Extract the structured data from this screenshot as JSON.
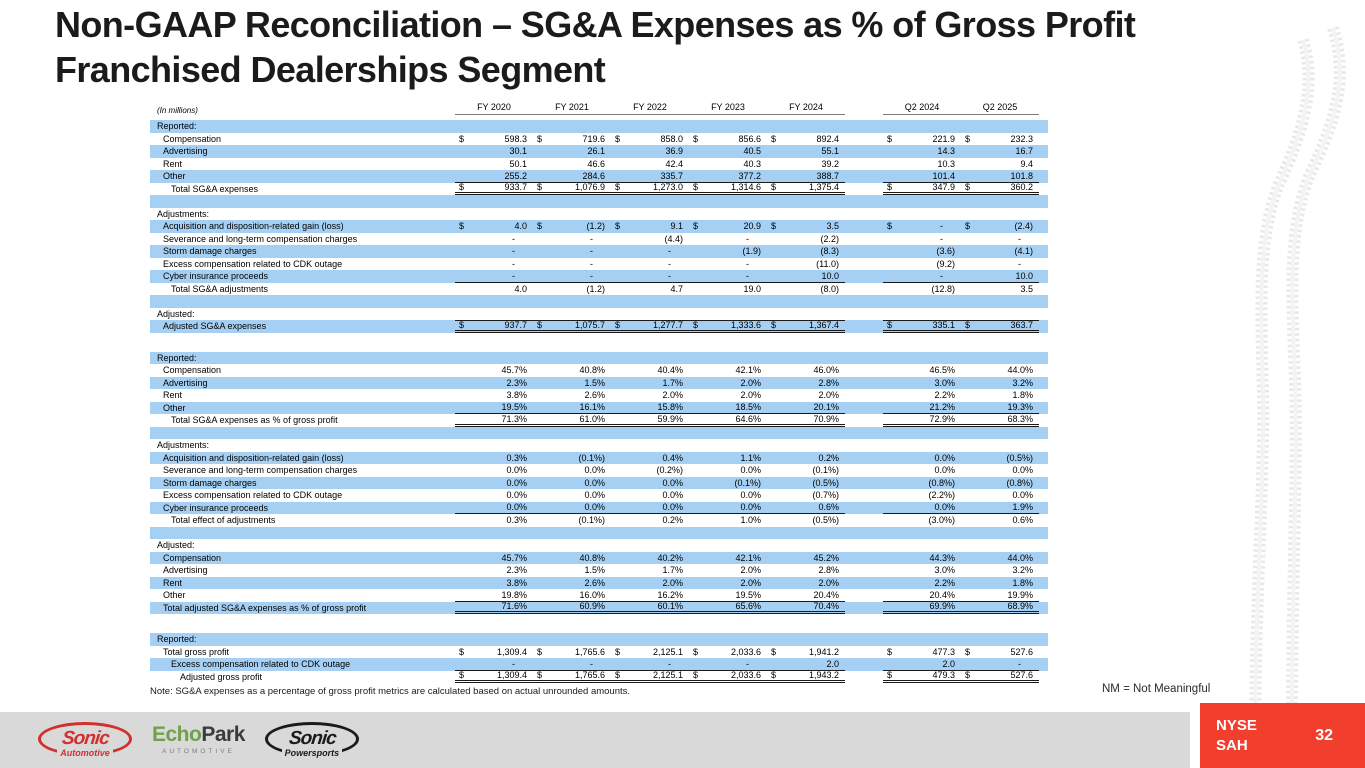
{
  "slide": {
    "title_line1": "Non-GAAP Reconciliation – SG&A Expenses as % of Gross Profit",
    "title_line2": "Franchised Dealerships Segment",
    "note": "Note: SG&A expenses as a percentage of gross profit metrics are calculated based on actual unrounded amounts.",
    "nm_note": "NM = Not Meaningful",
    "page_number": "32"
  },
  "colors": {
    "stripe_blue": "#A5D0F3",
    "accent_red": "#F23E2C",
    "footer_gray": "#D9D9D9",
    "sonic_red": "#D0312D",
    "echopark_green": "#6FA14B"
  },
  "table": {
    "units_label": "(In millions)",
    "columns": [
      "FY 2020",
      "FY 2021",
      "FY 2022",
      "FY 2023",
      "FY 2024",
      "Q2 2024",
      "Q2 2025"
    ],
    "rows": [
      {
        "t": "h",
        "l": "Reported:",
        "bg": "b"
      },
      {
        "t": "r",
        "l": "Compensation",
        "ind": 1,
        "bg": "w",
        "d": true,
        "v": [
          "598.3",
          "719.6",
          "858.0",
          "856.6",
          "892.4",
          "221.9",
          "232.3"
        ]
      },
      {
        "t": "r",
        "l": "Advertising",
        "ind": 1,
        "bg": "b",
        "v": [
          "30.1",
          "26.1",
          "36.9",
          "40.5",
          "55.1",
          "14.3",
          "16.7"
        ]
      },
      {
        "t": "r",
        "l": "Rent",
        "ind": 1,
        "bg": "w",
        "v": [
          "50.1",
          "46.6",
          "42.4",
          "40.3",
          "39.2",
          "10.3",
          "9.4"
        ]
      },
      {
        "t": "r",
        "l": "Other",
        "ind": 1,
        "bg": "b",
        "b": "bb",
        "v": [
          "255.2",
          "284.6",
          "335.7",
          "377.2",
          "388.7",
          "101.4",
          "101.8"
        ]
      },
      {
        "t": "r",
        "l": "Total SG&A expenses",
        "ind": 2,
        "bg": "w",
        "d": true,
        "b": "bd",
        "v": [
          "933.7",
          "1,076.9",
          "1,273.0",
          "1,314.6",
          "1,375.4",
          "347.9",
          "360.2"
        ]
      },
      {
        "t": "sp",
        "bg": "b"
      },
      {
        "t": "h",
        "l": "Adjustments:",
        "bg": "w"
      },
      {
        "t": "r",
        "l": "Acquisition and disposition-related gain (loss)",
        "ind": 1,
        "bg": "b",
        "d": true,
        "v": [
          "4.0",
          "(1.2)",
          "9.1",
          "20.9",
          "3.5",
          "-",
          "(2.4)"
        ]
      },
      {
        "t": "r",
        "l": "Severance and long-term compensation charges",
        "ind": 1,
        "bg": "w",
        "v": [
          "-",
          "-",
          "(4.4)",
          "-",
          "(2.2)",
          "-",
          "-"
        ]
      },
      {
        "t": "r",
        "l": "Storm damage charges",
        "ind": 1,
        "bg": "b",
        "v": [
          "-",
          "-",
          "-",
          "(1.9)",
          "(8.3)",
          "(3.6)",
          "(4.1)"
        ]
      },
      {
        "t": "r",
        "l": "Excess compensation related to CDK outage",
        "ind": 1,
        "bg": "w",
        "v": [
          "-",
          "-",
          "-",
          "-",
          "(11.0)",
          "(9.2)",
          "-"
        ]
      },
      {
        "t": "r",
        "l": "Cyber insurance proceeds",
        "ind": 1,
        "bg": "b",
        "b": "bb",
        "v": [
          "-",
          "-",
          "-",
          "-",
          "10.0",
          "-",
          "10.0"
        ]
      },
      {
        "t": "r",
        "l": "Total SG&A adjustments",
        "ind": 2,
        "bg": "w",
        "v": [
          "4.0",
          "(1.2)",
          "4.7",
          "19.0",
          "(8.0)",
          "(12.8)",
          "3.5"
        ]
      },
      {
        "t": "sp",
        "bg": "b"
      },
      {
        "t": "h",
        "l": "Adjusted:",
        "bg": "w"
      },
      {
        "t": "r",
        "l": "Adjusted SG&A expenses",
        "ind": 1,
        "bg": "b",
        "d": true,
        "b": "btd",
        "v": [
          "937.7",
          "1,075.7",
          "1,277.7",
          "1,333.6",
          "1,367.4",
          "335.1",
          "363.7"
        ]
      },
      {
        "t": "sp",
        "bg": "w",
        "h": 19
      },
      {
        "t": "h",
        "l": "Reported:",
        "bg": "b"
      },
      {
        "t": "r",
        "l": "Compensation",
        "ind": 1,
        "bg": "w",
        "v": [
          "45.7%",
          "40.8%",
          "40.4%",
          "42.1%",
          "46.0%",
          "46.5%",
          "44.0%"
        ]
      },
      {
        "t": "r",
        "l": "Advertising",
        "ind": 1,
        "bg": "b",
        "v": [
          "2.3%",
          "1.5%",
          "1.7%",
          "2.0%",
          "2.8%",
          "3.0%",
          "3.2%"
        ]
      },
      {
        "t": "r",
        "l": "Rent",
        "ind": 1,
        "bg": "w",
        "v": [
          "3.8%",
          "2.6%",
          "2.0%",
          "2.0%",
          "2.0%",
          "2.2%",
          "1.8%"
        ]
      },
      {
        "t": "r",
        "l": "Other",
        "ind": 1,
        "bg": "b",
        "b": "bb",
        "v": [
          "19.5%",
          "16.1%",
          "15.8%",
          "18.5%",
          "20.1%",
          "21.2%",
          "19.3%"
        ]
      },
      {
        "t": "r",
        "l": "Total SG&A expenses as % of gross profit",
        "ind": 2,
        "bg": "w",
        "b": "bd",
        "v": [
          "71.3%",
          "61.0%",
          "59.9%",
          "64.6%",
          "70.9%",
          "72.9%",
          "68.3%"
        ]
      },
      {
        "t": "sp",
        "bg": "b"
      },
      {
        "t": "h",
        "l": "Adjustments:",
        "bg": "w"
      },
      {
        "t": "r",
        "l": "Acquisition and disposition-related gain (loss)",
        "ind": 1,
        "bg": "b",
        "v": [
          "0.3%",
          "(0.1%)",
          "0.4%",
          "1.1%",
          "0.2%",
          "0.0%",
          "(0.5%)"
        ]
      },
      {
        "t": "r",
        "l": "Severance and long-term compensation charges",
        "ind": 1,
        "bg": "w",
        "v": [
          "0.0%",
          "0.0%",
          "(0.2%)",
          "0.0%",
          "(0.1%)",
          "0.0%",
          "0.0%"
        ]
      },
      {
        "t": "r",
        "l": "Storm damage charges",
        "ind": 1,
        "bg": "b",
        "v": [
          "0.0%",
          "0.0%",
          "0.0%",
          "(0.1%)",
          "(0.5%)",
          "(0.8%)",
          "(0.8%)"
        ]
      },
      {
        "t": "r",
        "l": "Excess compensation related to CDK outage",
        "ind": 1,
        "bg": "w",
        "v": [
          "0.0%",
          "0.0%",
          "0.0%",
          "0.0%",
          "(0.7%)",
          "(2.2%)",
          "0.0%"
        ]
      },
      {
        "t": "r",
        "l": "Cyber insurance proceeds",
        "ind": 1,
        "bg": "b",
        "b": "bb",
        "v": [
          "0.0%",
          "0.0%",
          "0.0%",
          "0.0%",
          "0.6%",
          "0.0%",
          "1.9%"
        ]
      },
      {
        "t": "r",
        "l": "Total effect of adjustments",
        "ind": 2,
        "bg": "w",
        "v": [
          "0.3%",
          "(0.1%)",
          "0.2%",
          "1.0%",
          "(0.5%)",
          "(3.0%)",
          "0.6%"
        ]
      },
      {
        "t": "sp",
        "bg": "b"
      },
      {
        "t": "h",
        "l": "Adjusted:",
        "bg": "w"
      },
      {
        "t": "r",
        "l": "Compensation",
        "ind": 1,
        "bg": "b",
        "v": [
          "45.7%",
          "40.8%",
          "40.2%",
          "42.1%",
          "45.2%",
          "44.3%",
          "44.0%"
        ]
      },
      {
        "t": "r",
        "l": "Advertising",
        "ind": 1,
        "bg": "w",
        "v": [
          "2.3%",
          "1.5%",
          "1.7%",
          "2.0%",
          "2.8%",
          "3.0%",
          "3.2%"
        ]
      },
      {
        "t": "r",
        "l": "Rent",
        "ind": 1,
        "bg": "b",
        "v": [
          "3.8%",
          "2.6%",
          "2.0%",
          "2.0%",
          "2.0%",
          "2.2%",
          "1.8%"
        ]
      },
      {
        "t": "r",
        "l": "Other",
        "ind": 1,
        "bg": "w",
        "b": "bb",
        "v": [
          "19.8%",
          "16.0%",
          "16.2%",
          "19.5%",
          "20.4%",
          "20.4%",
          "19.9%"
        ]
      },
      {
        "t": "r",
        "l": "Total adjusted SG&A expenses as % of gross profit",
        "ind": 1,
        "bg": "b",
        "b": "bd",
        "v": [
          "71.6%",
          "60.9%",
          "60.1%",
          "65.6%",
          "70.4%",
          "69.9%",
          "68.9%"
        ]
      },
      {
        "t": "sp",
        "bg": "w",
        "h": 19
      },
      {
        "t": "h",
        "l": "Reported:",
        "bg": "b"
      },
      {
        "t": "r",
        "l": "Total gross profit",
        "ind": 1,
        "bg": "w",
        "d": true,
        "v": [
          "1,309.4",
          "1,765.6",
          "2,125.1",
          "2,033.6",
          "1,941.2",
          "477.3",
          "527.6"
        ]
      },
      {
        "t": "r",
        "l": "Excess compensation related to CDK outage",
        "ind": 2,
        "bg": "b",
        "b": "bb",
        "v": [
          "-",
          "-",
          "-",
          "-",
          "2.0",
          "2.0",
          "-"
        ]
      },
      {
        "t": "r",
        "l": "Adjusted gross profit",
        "ind": 3,
        "bg": "w",
        "d": true,
        "b": "bd",
        "v": [
          "1,309.4",
          "1,765.6",
          "2,125.1",
          "2,033.6",
          "1,943.2",
          "479.3",
          "527.6"
        ]
      }
    ]
  },
  "footer": {
    "ticker_exchange": "NYSE",
    "ticker_symbol": "SAH",
    "logos": [
      {
        "name": "Sonic Automotive",
        "main": "Sonic",
        "sub": "Automotive"
      },
      {
        "name": "EchoPark Automotive",
        "main_green": "Echo",
        "main_dark": "Park",
        "sub": "AUTOMOTIVE"
      },
      {
        "name": "Sonic Powersports",
        "main": "Sonic",
        "sub": "Powersports"
      }
    ]
  }
}
